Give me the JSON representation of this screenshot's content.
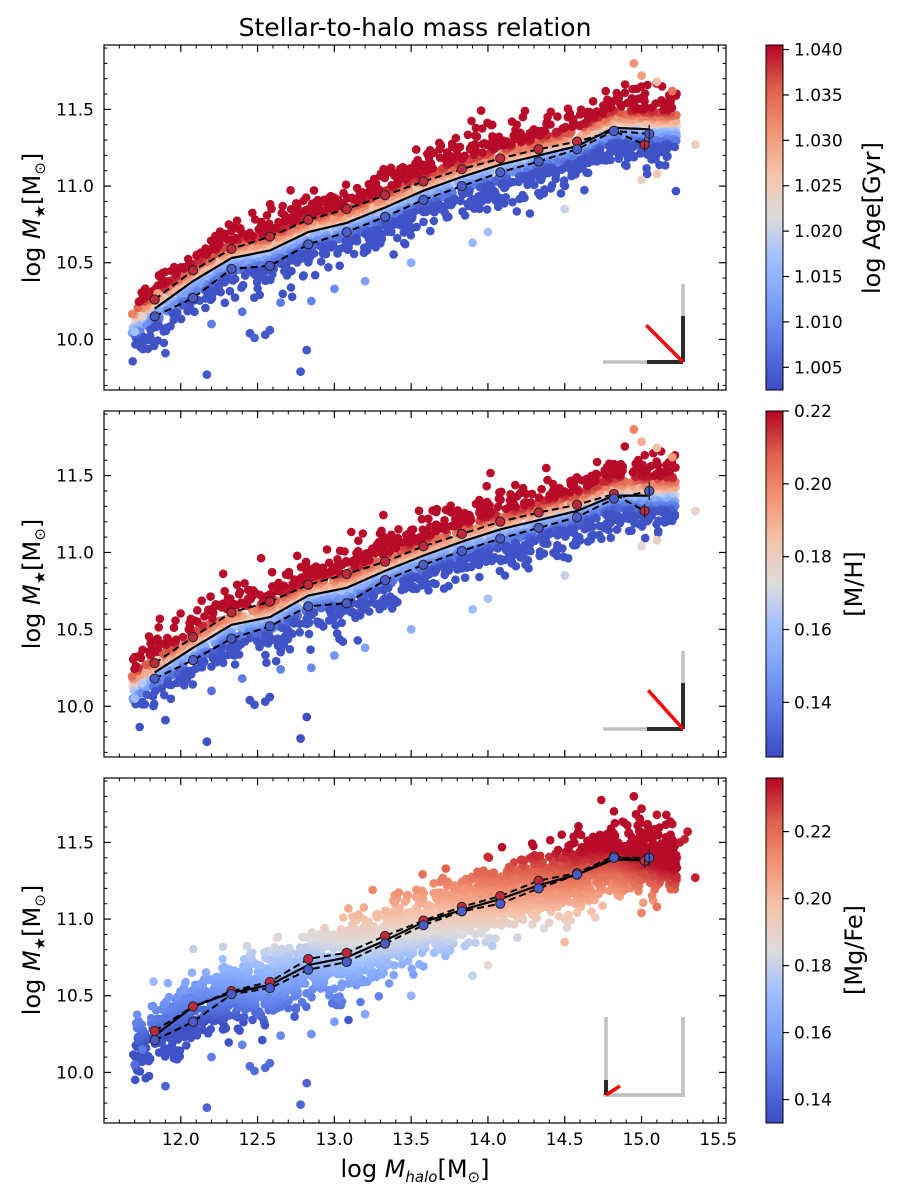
{
  "figure": {
    "title": "Stellar-to-halo mass relation",
    "xlabel": "log M_halo[M⊙]",
    "ylabel": "log M★[M⊙]"
  },
  "chart_data": [
    {
      "type": "scatter",
      "panel": "top",
      "colorbar_label": "log Age[Gyr]",
      "color_range": [
        1.0025,
        1.0405
      ],
      "colorbar_ticks": [
        1.005,
        1.01,
        1.015,
        1.02,
        1.025,
        1.03,
        1.035,
        1.04
      ],
      "colorbar_tick_labels": [
        "1.005",
        "1.010",
        "1.015",
        "1.020",
        "1.025",
        "1.030",
        "1.035",
        "1.040"
      ],
      "xlim": [
        11.5,
        15.55
      ],
      "ylim": [
        9.67,
        11.92
      ],
      "x_ticks": [
        12.0,
        12.5,
        13.0,
        13.5,
        14.0,
        14.5,
        15.0,
        15.5
      ],
      "x_tick_labels": [
        "12.0",
        "12.5",
        "13.0",
        "13.5",
        "14.0",
        "14.5",
        "15.0",
        "15.5"
      ],
      "y_ticks": [
        10.0,
        10.5,
        11.0,
        11.5
      ],
      "y_tick_labels": [
        "10.0",
        "10.5",
        "11.0",
        "11.5"
      ],
      "points": [
        [
          11.9,
          9.91,
          1.004
        ],
        [
          12.17,
          9.77,
          1.004
        ],
        [
          12.78,
          9.79,
          1.004
        ],
        [
          12.82,
          9.93,
          1.004
        ],
        [
          12.45,
          10.04,
          1.004
        ],
        [
          12.55,
          10.03,
          1.004
        ],
        [
          12.58,
          10.06,
          1.004
        ],
        [
          12.48,
          10.01,
          1.005
        ],
        [
          12.2,
          10.1,
          1.008
        ],
        [
          12.4,
          10.18,
          1.007
        ],
        [
          12.65,
          10.24,
          1.008
        ],
        [
          12.85,
          10.25,
          1.009
        ],
        [
          13.0,
          10.33,
          1.01
        ],
        [
          13.2,
          10.38,
          1.012
        ],
        [
          13.5,
          10.5,
          1.014
        ],
        [
          13.9,
          10.63,
          1.016
        ],
        [
          14.0,
          10.7,
          1.017
        ],
        [
          14.5,
          10.85,
          1.02
        ],
        [
          15.0,
          11.04,
          1.024
        ],
        [
          15.1,
          11.08,
          1.026
        ],
        [
          15.35,
          11.27,
          1.024
        ],
        [
          15.2,
          11.62,
          1.034
        ],
        [
          14.95,
          11.8,
          1.031
        ],
        [
          15.0,
          11.72,
          1.03
        ],
        [
          15.1,
          11.68,
          1.027
        ],
        [
          11.7,
          10.05,
          1.017
        ],
        [
          11.75,
          10.15,
          1.023
        ],
        [
          11.85,
          10.3,
          1.03
        ]
      ],
      "upper_dashed": {
        "x": [
          11.83,
          12.08,
          12.33,
          12.58,
          12.83,
          13.08,
          13.33,
          13.58,
          13.83,
          14.08,
          14.33,
          14.58,
          14.82,
          15.02
        ],
        "y": [
          10.26,
          10.45,
          10.59,
          10.67,
          10.78,
          10.85,
          10.94,
          11.03,
          11.11,
          11.18,
          11.24,
          11.29,
          11.36,
          11.27
        ]
      },
      "median": {
        "x": [
          11.83,
          12.08,
          12.33,
          12.58,
          12.83,
          13.08,
          13.33,
          13.58,
          13.83,
          14.08,
          14.33,
          14.58,
          14.82,
          15.05
        ],
        "y": [
          10.2,
          10.38,
          10.53,
          10.58,
          10.7,
          10.76,
          10.86,
          10.97,
          11.06,
          11.14,
          11.2,
          11.26,
          11.38,
          11.37
        ]
      },
      "lower_dashed": {
        "x": [
          11.83,
          12.08,
          12.33,
          12.58,
          12.83,
          13.08,
          13.33,
          13.58,
          13.83,
          14.08,
          14.33,
          14.58,
          14.82,
          15.05
        ],
        "y": [
          10.15,
          10.27,
          10.46,
          10.48,
          10.62,
          10.7,
          10.8,
          10.91,
          11.0,
          11.09,
          11.16,
          11.24,
          11.36,
          11.34
        ]
      },
      "inset_angle_deg": 45
    },
    {
      "type": "scatter",
      "panel": "middle",
      "colorbar_label": "[M/H]",
      "color_range": [
        0.125,
        0.22
      ],
      "colorbar_ticks": [
        0.14,
        0.16,
        0.18,
        0.2,
        0.22
      ],
      "colorbar_tick_labels": [
        "0.14",
        "0.16",
        "0.18",
        "0.20",
        "0.22"
      ],
      "xlim": [
        11.5,
        15.55
      ],
      "ylim": [
        9.67,
        11.92
      ],
      "x_ticks": [
        12.0,
        12.5,
        13.0,
        13.5,
        14.0,
        14.5,
        15.0,
        15.5
      ],
      "x_tick_labels": [
        "12.0",
        "12.5",
        "13.0",
        "13.5",
        "14.0",
        "14.5",
        "15.0",
        "15.5"
      ],
      "y_ticks": [
        10.0,
        10.5,
        11.0,
        11.5
      ],
      "y_tick_labels": [
        "10.0",
        "10.5",
        "11.0",
        "11.5"
      ],
      "points": [
        [
          11.9,
          9.91,
          0.126
        ],
        [
          12.17,
          9.77,
          0.126
        ],
        [
          12.78,
          9.79,
          0.126
        ],
        [
          12.82,
          9.93,
          0.126
        ],
        [
          12.45,
          10.04,
          0.127
        ],
        [
          12.55,
          10.03,
          0.127
        ],
        [
          12.58,
          10.06,
          0.127
        ],
        [
          12.48,
          10.01,
          0.128
        ],
        [
          12.2,
          10.1,
          0.135
        ],
        [
          12.4,
          10.18,
          0.138
        ],
        [
          12.65,
          10.24,
          0.14
        ],
        [
          12.85,
          10.25,
          0.142
        ],
        [
          13.0,
          10.33,
          0.146
        ],
        [
          13.2,
          10.38,
          0.15
        ],
        [
          13.5,
          10.5,
          0.155
        ],
        [
          13.9,
          10.63,
          0.16
        ],
        [
          14.0,
          10.7,
          0.162
        ],
        [
          14.5,
          10.85,
          0.168
        ],
        [
          15.0,
          11.04,
          0.175
        ],
        [
          15.1,
          11.08,
          0.18
        ],
        [
          15.35,
          11.27,
          0.176
        ],
        [
          15.2,
          11.62,
          0.195
        ],
        [
          14.95,
          11.8,
          0.2
        ],
        [
          15.0,
          11.72,
          0.19
        ],
        [
          15.1,
          11.68,
          0.185
        ],
        [
          11.7,
          10.05,
          0.16
        ],
        [
          11.75,
          10.15,
          0.165
        ],
        [
          11.85,
          10.3,
          0.18
        ]
      ],
      "upper_dashed": {
        "x": [
          11.83,
          12.08,
          12.33,
          12.58,
          12.83,
          13.08,
          13.33,
          13.58,
          13.83,
          14.08,
          14.33,
          14.58,
          14.82,
          15.02
        ],
        "y": [
          10.28,
          10.45,
          10.61,
          10.68,
          10.79,
          10.86,
          10.94,
          11.04,
          11.12,
          11.2,
          11.26,
          11.31,
          11.38,
          11.27
        ]
      },
      "median": {
        "x": [
          11.83,
          12.08,
          12.33,
          12.58,
          12.83,
          13.08,
          13.33,
          13.58,
          13.83,
          14.08,
          14.33,
          14.58,
          14.82,
          15.05
        ],
        "y": [
          10.22,
          10.38,
          10.53,
          10.58,
          10.72,
          10.77,
          10.88,
          10.98,
          11.07,
          11.15,
          11.21,
          11.27,
          11.37,
          11.37
        ]
      },
      "lower_dashed": {
        "x": [
          11.83,
          12.08,
          12.33,
          12.58,
          12.83,
          13.08,
          13.33,
          13.58,
          13.83,
          14.08,
          14.33,
          14.58,
          14.82,
          15.05
        ],
        "y": [
          10.18,
          10.3,
          10.44,
          10.52,
          10.65,
          10.67,
          10.82,
          10.92,
          11.01,
          11.09,
          11.16,
          11.23,
          11.35,
          11.4
        ]
      },
      "inset_angle_deg": 48
    },
    {
      "type": "scatter",
      "panel": "bottom",
      "colorbar_label": "[Mg/Fe]",
      "color_range": [
        0.133,
        0.236
      ],
      "colorbar_ticks": [
        0.14,
        0.16,
        0.18,
        0.2,
        0.22
      ],
      "colorbar_tick_labels": [
        "0.14",
        "0.16",
        "0.18",
        "0.20",
        "0.22"
      ],
      "xlim": [
        11.5,
        15.55
      ],
      "ylim": [
        9.67,
        11.92
      ],
      "x_ticks": [
        12.0,
        12.5,
        13.0,
        13.5,
        14.0,
        14.5,
        15.0,
        15.5
      ],
      "x_tick_labels": [
        "12.0",
        "12.5",
        "13.0",
        "13.5",
        "14.0",
        "14.5",
        "15.0",
        "15.5"
      ],
      "y_ticks": [
        10.0,
        10.5,
        11.0,
        11.5
      ],
      "y_tick_labels": [
        "10.0",
        "10.5",
        "11.0",
        "11.5"
      ],
      "points": [
        [
          11.9,
          9.91,
          0.14
        ],
        [
          12.17,
          9.77,
          0.14
        ],
        [
          12.78,
          9.79,
          0.14
        ],
        [
          12.82,
          9.93,
          0.14
        ],
        [
          12.45,
          10.04,
          0.142
        ],
        [
          12.55,
          10.03,
          0.142
        ],
        [
          12.58,
          10.06,
          0.143
        ],
        [
          12.48,
          10.01,
          0.143
        ],
        [
          12.2,
          10.1,
          0.148
        ],
        [
          12.4,
          10.18,
          0.15
        ],
        [
          12.65,
          10.24,
          0.152
        ],
        [
          12.85,
          10.25,
          0.155
        ],
        [
          13.0,
          10.33,
          0.158
        ],
        [
          13.2,
          10.38,
          0.162
        ],
        [
          13.5,
          10.5,
          0.168
        ],
        [
          13.9,
          10.63,
          0.18
        ],
        [
          14.0,
          10.7,
          0.186
        ],
        [
          14.5,
          10.85,
          0.2
        ],
        [
          15.0,
          11.04,
          0.214
        ],
        [
          15.1,
          11.08,
          0.218
        ],
        [
          15.35,
          11.27,
          0.232
        ],
        [
          15.2,
          11.62,
          0.234
        ],
        [
          14.95,
          11.8,
          0.235
        ],
        [
          15.0,
          11.72,
          0.234
        ],
        [
          15.1,
          11.68,
          0.233
        ],
        [
          15.25,
          11.5,
          0.233
        ],
        [
          15.28,
          11.52,
          0.232
        ],
        [
          15.3,
          11.57,
          0.233
        ],
        [
          11.7,
          10.05,
          0.143
        ],
        [
          11.75,
          10.15,
          0.147
        ]
      ],
      "upper_dashed": {
        "x": [
          11.83,
          12.08,
          12.33,
          12.58,
          12.83,
          13.08,
          13.33,
          13.58,
          13.83,
          14.08,
          14.33,
          14.58,
          14.82,
          15.02
        ],
        "y": [
          10.27,
          10.43,
          10.53,
          10.59,
          10.74,
          10.78,
          10.89,
          10.99,
          11.08,
          11.15,
          11.25,
          11.3,
          11.41,
          11.38
        ]
      },
      "median": {
        "x": [
          11.83,
          12.08,
          12.33,
          12.58,
          12.83,
          13.08,
          13.33,
          13.58,
          13.83,
          14.08,
          14.33,
          14.58,
          14.82,
          15.05
        ],
        "y": [
          10.24,
          10.43,
          10.52,
          10.57,
          10.7,
          10.75,
          10.86,
          10.98,
          11.06,
          11.13,
          11.22,
          11.29,
          11.39,
          11.38
        ]
      },
      "lower_dashed": {
        "x": [
          11.83,
          12.08,
          12.33,
          12.58,
          12.83,
          13.08,
          13.33,
          13.58,
          13.83,
          14.08,
          14.33,
          14.58,
          14.82,
          15.05
        ],
        "y": [
          10.21,
          10.33,
          10.51,
          10.55,
          10.67,
          10.72,
          10.84,
          10.96,
          11.05,
          11.1,
          11.2,
          11.29,
          11.4,
          11.4
        ]
      },
      "inset_angle_deg": 22
    }
  ]
}
